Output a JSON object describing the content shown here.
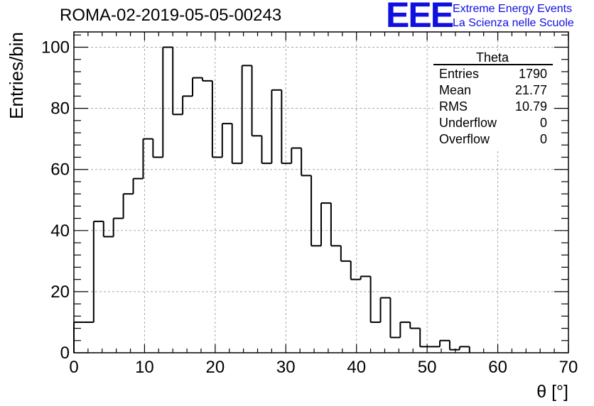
{
  "title": "ROMA-02-2019-05-05-00243",
  "logo": {
    "mark": "EEE",
    "line1": "Extreme Energy Events",
    "line2": "La Scienza nelle Scuole",
    "color": "#1010e0"
  },
  "stats": {
    "name": "Theta",
    "rows": [
      {
        "label": "Entries",
        "value": "1790"
      },
      {
        "label": "Mean",
        "value": "21.77"
      },
      {
        "label": "RMS",
        "value": "10.79"
      },
      {
        "label": "Underflow",
        "value": "0"
      },
      {
        "label": "Overflow",
        "value": "0"
      }
    ]
  },
  "chart_data": {
    "type": "bar",
    "xlabel": "θ [°]",
    "ylabel": "Entries/bin",
    "xlim": [
      0,
      70
    ],
    "ylim": [
      0,
      105
    ],
    "xticks": [
      0,
      10,
      20,
      30,
      40,
      50,
      60,
      70
    ],
    "yticks": [
      0,
      20,
      40,
      60,
      80,
      100
    ],
    "grid": true,
    "bin_width": 1.4,
    "values": [
      10,
      10,
      43,
      38,
      44,
      52,
      57,
      70,
      64,
      100,
      78,
      84,
      90,
      89,
      64,
      75,
      62,
      94,
      71,
      62,
      86,
      62,
      67,
      58,
      35,
      49,
      35,
      30,
      24,
      25,
      10,
      18,
      5,
      10,
      8,
      2,
      2,
      4,
      1,
      2
    ]
  }
}
